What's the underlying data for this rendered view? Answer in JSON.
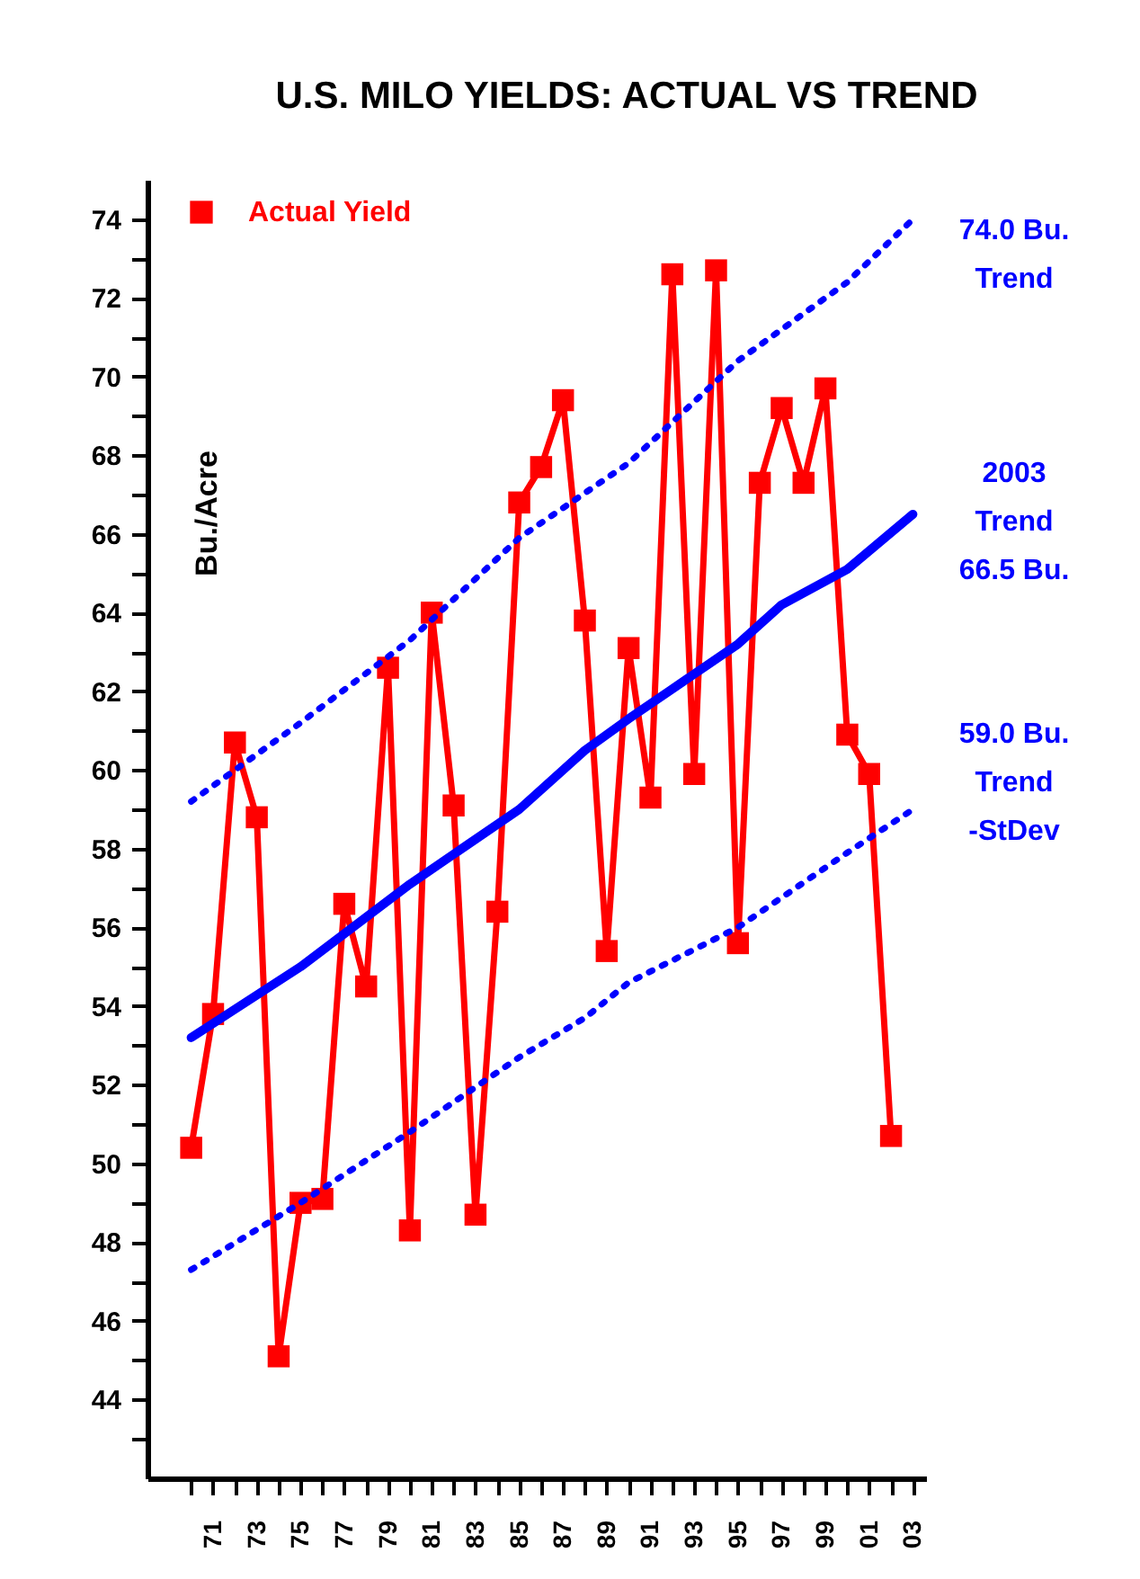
{
  "chart_data": {
    "type": "line",
    "title": "U.S. MILO YIELDS: ACTUAL VS TREND",
    "ylabel": "Bu./Acre",
    "xlim": [
      1968,
      2003.6
    ],
    "xticks": [
      {
        "value": 1970,
        "label": null
      },
      {
        "value": 1971,
        "label": "71"
      },
      {
        "value": 1972,
        "label": null
      },
      {
        "value": 1973,
        "label": "73"
      },
      {
        "value": 1974,
        "label": null
      },
      {
        "value": 1975,
        "label": "75"
      },
      {
        "value": 1976,
        "label": null
      },
      {
        "value": 1977,
        "label": "77"
      },
      {
        "value": 1978,
        "label": null
      },
      {
        "value": 1979,
        "label": "79"
      },
      {
        "value": 1980,
        "label": null
      },
      {
        "value": 1981,
        "label": "81"
      },
      {
        "value": 1982,
        "label": null
      },
      {
        "value": 1983,
        "label": "83"
      },
      {
        "value": 1984,
        "label": null
      },
      {
        "value": 1985,
        "label": "85"
      },
      {
        "value": 1986,
        "label": null
      },
      {
        "value": 1987,
        "label": "87"
      },
      {
        "value": 1988,
        "label": null
      },
      {
        "value": 1989,
        "label": "89"
      },
      {
        "value": 1990,
        "label": null
      },
      {
        "value": 1991,
        "label": "91"
      },
      {
        "value": 1992,
        "label": null
      },
      {
        "value": 1993,
        "label": "93"
      },
      {
        "value": 1994,
        "label": null
      },
      {
        "value": 1995,
        "label": "95"
      },
      {
        "value": 1996,
        "label": null
      },
      {
        "value": 1997,
        "label": "97"
      },
      {
        "value": 1998,
        "label": null
      },
      {
        "value": 1999,
        "label": "99"
      },
      {
        "value": 2000,
        "label": null
      },
      {
        "value": 2001,
        "label": "01"
      },
      {
        "value": 2002,
        "label": null
      },
      {
        "value": 2003,
        "label": "03"
      }
    ],
    "ylim": [
      42,
      75
    ],
    "yticks": [
      {
        "value": 43,
        "label": null
      },
      44,
      {
        "value": 45,
        "label": null
      },
      46,
      {
        "value": 47,
        "label": null
      },
      48,
      {
        "value": 49,
        "label": null
      },
      50,
      {
        "value": 51,
        "label": null
      },
      52,
      {
        "value": 53,
        "label": null
      },
      54,
      {
        "value": 55,
        "label": null
      },
      56,
      {
        "value": 57,
        "label": null
      },
      58,
      {
        "value": 59,
        "label": null
      },
      60,
      {
        "value": 61,
        "label": null
      },
      62,
      {
        "value": 63,
        "label": null
      },
      64,
      {
        "value": 65,
        "label": null
      },
      66,
      {
        "value": 67,
        "label": null
      },
      68,
      {
        "value": 69,
        "label": null
      },
      70,
      {
        "value": 71,
        "label": null
      },
      72,
      {
        "value": 73,
        "label": null
      },
      74
    ],
    "grid": false,
    "legend": "top left",
    "series": [
      {
        "name": "Actual Yield",
        "color": "#ff0000",
        "marker": "square",
        "line_style": "solid",
        "x": [
          1970,
          1971,
          1972,
          1973,
          1974,
          1975,
          1976,
          1977,
          1978,
          1979,
          1980,
          1981,
          1982,
          1983,
          1984,
          1985,
          1986,
          1987,
          1988,
          1989,
          1990,
          1991,
          1992,
          1993,
          1994,
          1995,
          1996,
          1997,
          1998,
          1999,
          2000,
          2001,
          2002
        ],
        "values": [
          50.4,
          53.8,
          60.7,
          58.8,
          45.1,
          49.0,
          49.1,
          56.6,
          54.5,
          62.6,
          48.3,
          64.0,
          59.1,
          48.7,
          56.4,
          66.8,
          67.7,
          69.4,
          63.8,
          55.4,
          63.1,
          59.3,
          72.6,
          59.9,
          72.7,
          55.6,
          67.3,
          69.2,
          67.3,
          69.7,
          60.9,
          59.9,
          50.7
        ]
      },
      {
        "color": "#0000ff",
        "marker": "none",
        "line_style": "solid",
        "x": [
          1970,
          1975,
          1980,
          1985,
          1988,
          1990,
          1995,
          1997,
          2000,
          2003
        ],
        "values": [
          53.2,
          55.0,
          57.1,
          59.0,
          60.5,
          61.3,
          63.2,
          64.2,
          65.1,
          66.5
        ]
      },
      {
        "color": "#0000ff",
        "marker": "none",
        "line_style": "dotted",
        "x": [
          1970,
          1975,
          1980,
          1985,
          1990,
          1995,
          2000,
          2003
        ],
        "values": [
          59.2,
          61.2,
          63.3,
          65.9,
          67.8,
          70.4,
          72.4,
          74.0
        ]
      },
      {
        "color": "#0000ff",
        "marker": "none",
        "line_style": "dotted",
        "x": [
          1970,
          1975,
          1980,
          1985,
          1988,
          1990,
          1995,
          2000,
          2003
        ],
        "values": [
          47.3,
          49.0,
          50.8,
          52.7,
          53.7,
          54.6,
          56.0,
          57.9,
          59.0
        ]
      }
    ],
    "annotations": [
      "74.0 Bu.\nTrend",
      "2003\nTrend\n66.5 Bu.",
      "59.0 Bu.\nTrend\n-StDev"
    ]
  }
}
